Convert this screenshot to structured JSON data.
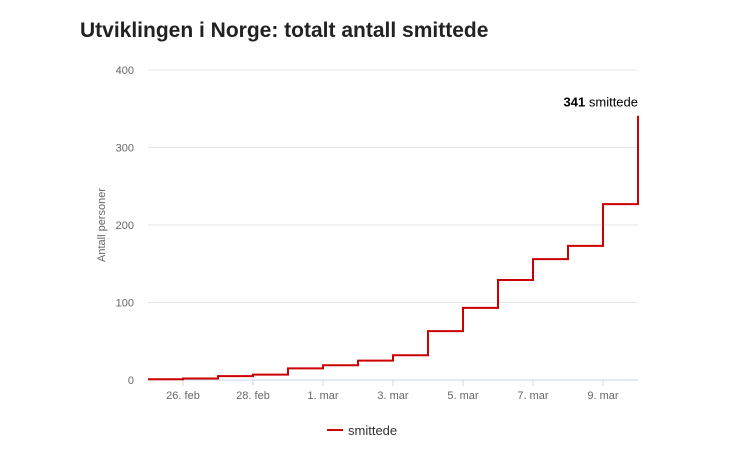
{
  "title": "Utviklingen i Norge: totalt antall smittede",
  "chart_data": {
    "type": "line",
    "step": true,
    "title": "Utviklingen i Norge: totalt antall smittede",
    "ylabel": "Antall personer",
    "xlabel": "",
    "ylim": [
      0,
      400
    ],
    "yticks": [
      0,
      100,
      200,
      300,
      400
    ],
    "x_start": "25. feb",
    "x_end": "10. mar",
    "xticks": [
      "26. feb",
      "28. feb",
      "1. mar",
      "3. mar",
      "5. mar",
      "7. mar",
      "9. mar"
    ],
    "grid": true,
    "legend_position": "bottom-center",
    "series": [
      {
        "name": "smittede",
        "color": "#cc0000",
        "x": [
          "25. feb",
          "26. feb",
          "27. feb",
          "28. feb",
          "29. feb",
          "1. mar",
          "2. mar",
          "3. mar",
          "4. mar",
          "5. mar",
          "6. mar",
          "7. mar",
          "8. mar",
          "9. mar",
          "10. mar"
        ],
        "values": [
          1,
          2,
          5,
          7,
          15,
          19,
          25,
          32,
          63,
          93,
          129,
          156,
          173,
          227,
          341
        ]
      }
    ],
    "annotation": {
      "value": "341",
      "text": "smittede"
    }
  }
}
